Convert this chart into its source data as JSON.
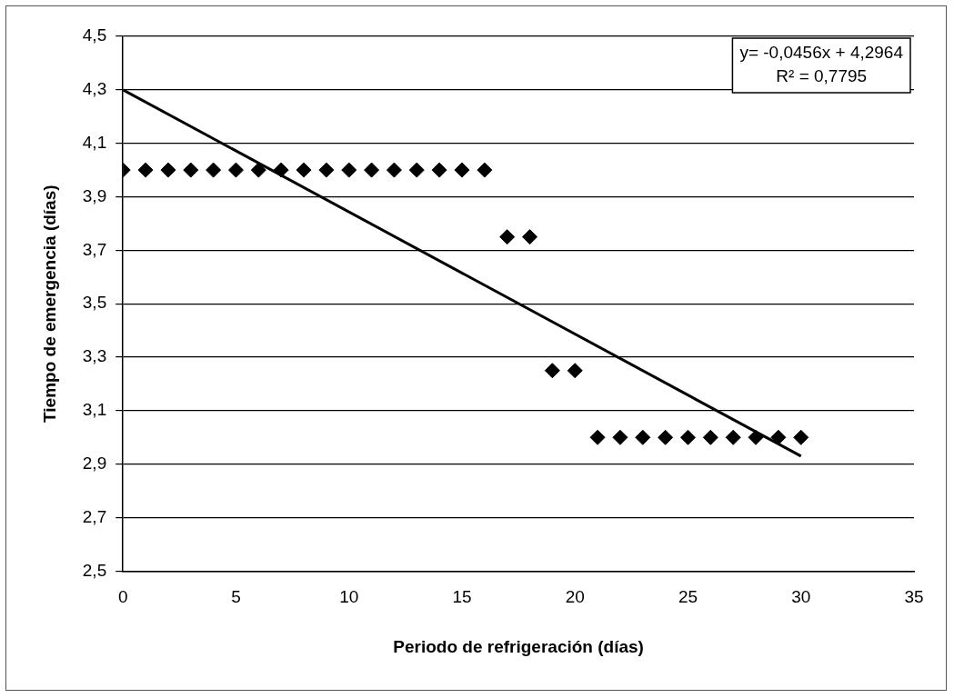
{
  "chart_data": {
    "type": "scatter",
    "xlabel": "Periodo de refrigeración (días)",
    "ylabel": "Tiempo de emergencia (días)",
    "x": [
      0,
      1,
      2,
      3,
      4,
      5,
      6,
      7,
      8,
      9,
      10,
      11,
      12,
      13,
      14,
      15,
      16,
      17,
      18,
      19,
      20,
      21,
      22,
      23,
      24,
      25,
      26,
      27,
      28,
      29,
      30
    ],
    "series": [
      {
        "color": "#000000",
        "marker": "diamond",
        "values": [
          4,
          4,
          4,
          4,
          4,
          4,
          4,
          4,
          4,
          4,
          4,
          4,
          4,
          4,
          4,
          4,
          4,
          3.75,
          3.75,
          3.25,
          3.25,
          3,
          3,
          3,
          3,
          3,
          3,
          3,
          3,
          3,
          3
        ]
      },
      {
        "type": "line",
        "color": "#000000",
        "marker": "none",
        "line_style": "solid",
        "x": [
          0,
          30
        ],
        "values": [
          4.3,
          2.93
        ]
      }
    ],
    "xlim": [
      0,
      35
    ],
    "xticks": [
      0,
      5,
      10,
      15,
      20,
      25,
      30,
      35
    ],
    "ylim": [
      2.5,
      4.5
    ],
    "yticks": [
      {
        "value": 2.5,
        "label": "2,5"
      },
      {
        "value": 2.7,
        "label": "2,7"
      },
      {
        "value": 2.9,
        "label": "2,9"
      },
      {
        "value": 3.1,
        "label": "3,1"
      },
      {
        "value": 3.3,
        "label": "3,3"
      },
      {
        "value": 3.5,
        "label": "3,5"
      },
      {
        "value": 3.7,
        "label": "3,7"
      },
      {
        "value": 3.9,
        "label": "3,9"
      },
      {
        "value": 4.1,
        "label": "4,1"
      },
      {
        "value": 4.3,
        "label": "4,3"
      },
      {
        "value": 4.5,
        "label": "4,5"
      }
    ],
    "grid": "y",
    "legend": false,
    "annotations": [
      "y= -0,0456x + 4,2964",
      "R² = 0,7795"
    ]
  }
}
